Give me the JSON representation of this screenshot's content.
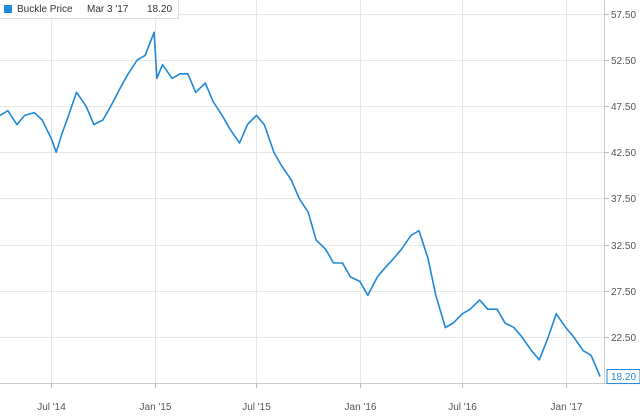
{
  "legend": {
    "series_name": "Buckle Price",
    "date": "Mar 3 '17",
    "value": "18.20"
  },
  "last_value_label": "18.20",
  "colors": {
    "line": "#1f88d8",
    "grid": "#e6e6e6",
    "axis_text": "#555555"
  },
  "chart_data": {
    "type": "line",
    "title": "",
    "xlabel": "",
    "ylabel": "",
    "series": [
      {
        "name": "Buckle Price",
        "x": [
          "2014-04-01",
          "2014-04-15",
          "2014-05-01",
          "2014-05-15",
          "2014-06-01",
          "2014-06-15",
          "2014-07-01",
          "2014-07-10",
          "2014-07-20",
          "2014-08-01",
          "2014-08-15",
          "2014-09-01",
          "2014-09-15",
          "2014-10-01",
          "2014-10-15",
          "2014-11-01",
          "2014-11-15",
          "2014-12-01",
          "2014-12-15",
          "2014-12-31",
          "2015-01-05",
          "2015-01-15",
          "2015-02-01",
          "2015-02-15",
          "2015-03-01",
          "2015-03-15",
          "2015-04-01",
          "2015-04-15",
          "2015-05-01",
          "2015-05-15",
          "2015-06-01",
          "2015-06-15",
          "2015-07-01",
          "2015-07-15",
          "2015-08-01",
          "2015-08-15",
          "2015-09-01",
          "2015-09-15",
          "2015-10-01",
          "2015-10-15",
          "2015-11-01",
          "2015-11-15",
          "2015-12-01",
          "2015-12-15",
          "2016-01-01",
          "2016-01-15",
          "2016-02-01",
          "2016-02-15",
          "2016-03-01",
          "2016-03-15",
          "2016-04-01",
          "2016-04-15",
          "2016-05-01",
          "2016-05-15",
          "2016-06-01",
          "2016-06-15",
          "2016-07-01",
          "2016-07-15",
          "2016-08-01",
          "2016-08-15",
          "2016-09-01",
          "2016-09-15",
          "2016-10-01",
          "2016-10-15",
          "2016-11-01",
          "2016-11-15",
          "2016-12-01",
          "2016-12-15",
          "2017-01-01",
          "2017-01-15",
          "2017-02-01",
          "2017-02-15",
          "2017-03-03"
        ],
        "values": [
          46.5,
          47.0,
          45.5,
          46.5,
          46.8,
          46.0,
          44.0,
          42.5,
          44.5,
          46.5,
          49.0,
          47.5,
          45.5,
          46.0,
          47.5,
          49.5,
          51.0,
          52.5,
          53.0,
          55.5,
          50.5,
          52.0,
          50.5,
          51.0,
          51.0,
          49.0,
          50.0,
          48.0,
          46.5,
          45.0,
          43.5,
          45.5,
          46.5,
          45.5,
          42.5,
          41.0,
          39.5,
          37.5,
          36.0,
          33.0,
          32.0,
          30.5,
          30.5,
          29.0,
          28.5,
          27.0,
          29.0,
          30.0,
          31.0,
          32.0,
          33.5,
          34.0,
          31.0,
          27.0,
          23.5,
          24.0,
          25.0,
          25.5,
          26.5,
          25.5,
          25.5,
          24.0,
          23.5,
          22.5,
          21.0,
          20.0,
          22.5,
          25.0,
          23.5,
          22.5,
          21.0,
          20.5,
          18.2
        ]
      }
    ],
    "x_range": [
      "2014-04-01",
      "2017-03-10"
    ],
    "ylim": [
      17.5,
      59.0
    ],
    "x_ticks": [
      {
        "date": "2014-07-01",
        "label": "Jul '14"
      },
      {
        "date": "2015-01-01",
        "label": "Jan '15"
      },
      {
        "date": "2015-07-01",
        "label": "Jul '15"
      },
      {
        "date": "2016-01-01",
        "label": "Jan '16"
      },
      {
        "date": "2016-07-01",
        "label": "Jul '16"
      },
      {
        "date": "2017-01-01",
        "label": "Jan '17"
      }
    ],
    "y_ticks": [
      {
        "value": 57.5,
        "label": "57.50"
      },
      {
        "value": 52.5,
        "label": "52.50"
      },
      {
        "value": 47.5,
        "label": "47.50"
      },
      {
        "value": 42.5,
        "label": "42.50"
      },
      {
        "value": 37.5,
        "label": "37.50"
      },
      {
        "value": 32.5,
        "label": "32.50"
      },
      {
        "value": 27.5,
        "label": "27.50"
      },
      {
        "value": 22.5,
        "label": "22.50"
      }
    ],
    "grid": true,
    "legend_position": "top-left"
  }
}
